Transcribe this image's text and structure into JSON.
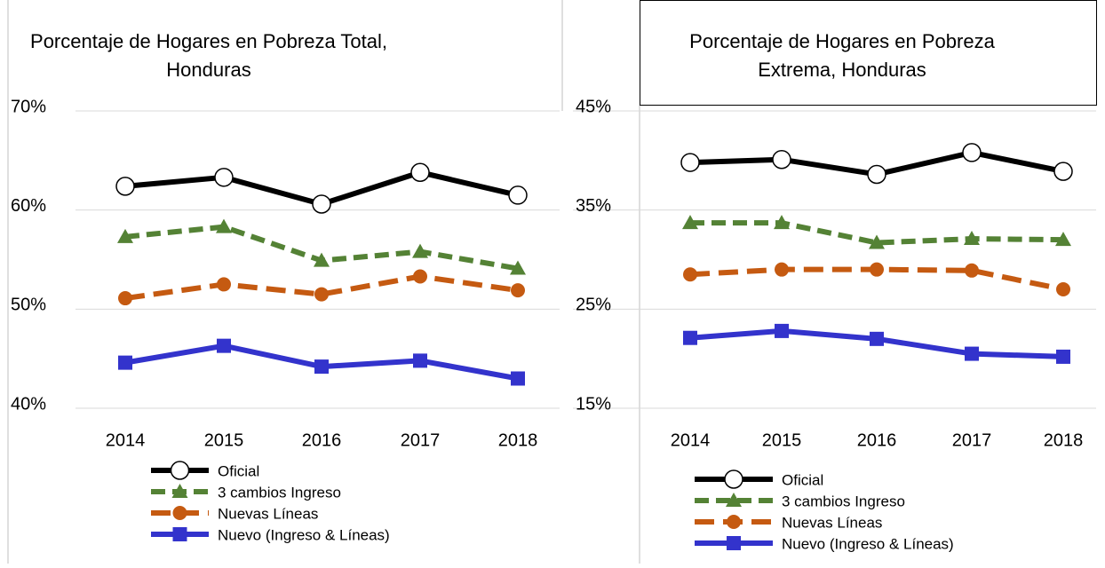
{
  "chart_data": [
    {
      "type": "line",
      "title": [
        "Porcentaje de Hogares en Pobreza Total,",
        "Honduras"
      ],
      "categories": [
        "2014",
        "2015",
        "2016",
        "2017",
        "2018"
      ],
      "ylim": [
        40,
        70
      ],
      "yticks": [
        {
          "value": 40,
          "label": "40%"
        },
        {
          "value": 50,
          "label": "50%"
        },
        {
          "value": 60,
          "label": "60%"
        },
        {
          "value": 70,
          "label": "70%"
        }
      ],
      "grid": true,
      "series": [
        {
          "name": "Oficial",
          "color": "#000000",
          "marker": "open-circle",
          "dash": "solid",
          "values": [
            62.4,
            63.3,
            60.6,
            63.8,
            61.5
          ]
        },
        {
          "name": "3 cambios Ingreso",
          "color": "#548235",
          "marker": "triangle",
          "dash": "dashed",
          "values": [
            57.3,
            58.3,
            54.9,
            55.8,
            54.1
          ]
        },
        {
          "name": "Nuevas Líneas",
          "color": "#c55a11",
          "marker": "circle",
          "dash": "dashed",
          "values": [
            51.1,
            52.5,
            51.5,
            53.3,
            51.9
          ]
        },
        {
          "name": "Nuevo (Ingreso & Líneas)",
          "color": "#3333cc",
          "marker": "square",
          "dash": "solid",
          "values": [
            44.6,
            46.3,
            44.2,
            44.8,
            43.0
          ]
        }
      ]
    },
    {
      "type": "line",
      "title": [
        "Porcentaje de Hogares en Pobreza",
        "Extrema, Honduras"
      ],
      "categories": [
        "2014",
        "2015",
        "2016",
        "2017",
        "2018"
      ],
      "ylim": [
        15,
        45
      ],
      "yticks": [
        {
          "value": 15,
          "label": "15%"
        },
        {
          "value": 25,
          "label": "25%"
        },
        {
          "value": 35,
          "label": "35%"
        },
        {
          "value": 45,
          "label": "45%"
        }
      ],
      "grid": true,
      "series": [
        {
          "name": "Oficial",
          "color": "#000000",
          "marker": "open-circle",
          "dash": "solid",
          "values": [
            39.8,
            40.1,
            38.6,
            40.8,
            38.9
          ]
        },
        {
          "name": "3 cambios Ingreso",
          "color": "#548235",
          "marker": "triangle",
          "dash": "dashed",
          "values": [
            33.7,
            33.7,
            31.7,
            32.1,
            32.0
          ]
        },
        {
          "name": "Nuevas Líneas",
          "color": "#c55a11",
          "marker": "circle",
          "dash": "dashed",
          "values": [
            28.5,
            29.0,
            29.0,
            28.9,
            27.0
          ]
        },
        {
          "name": "Nuevo (Ingreso & Líneas)",
          "color": "#3333cc",
          "marker": "square",
          "dash": "solid",
          "values": [
            22.1,
            22.8,
            22.0,
            20.5,
            20.2
          ]
        }
      ]
    }
  ]
}
